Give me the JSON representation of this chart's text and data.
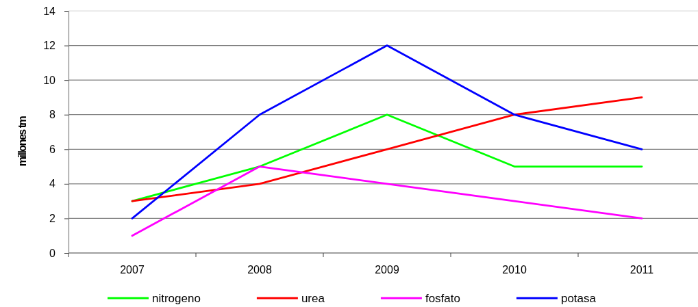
{
  "chart_data": {
    "type": "line",
    "ylabel": "millones tm",
    "categories": [
      "2007",
      "2008",
      "2009",
      "2010",
      "2011"
    ],
    "series": [
      {
        "name": "nitrogeno",
        "color": "#00ff00",
        "values": [
          3,
          5,
          8,
          5,
          5
        ]
      },
      {
        "name": "urea",
        "color": "#ff0000",
        "values": [
          3,
          4,
          6,
          8,
          9
        ]
      },
      {
        "name": "fosfato",
        "color": "#ff00ff",
        "values": [
          1,
          5,
          4,
          3,
          2
        ]
      },
      {
        "name": "potasa",
        "color": "#0000ff",
        "values": [
          2,
          8,
          12,
          8,
          6
        ]
      }
    ],
    "ylim": [
      0,
      14
    ],
    "yticks": [
      0,
      2,
      4,
      6,
      8,
      10,
      12,
      14
    ],
    "grid": "y",
    "legend": "bottom",
    "marker": "none",
    "line_style": "solid"
  }
}
